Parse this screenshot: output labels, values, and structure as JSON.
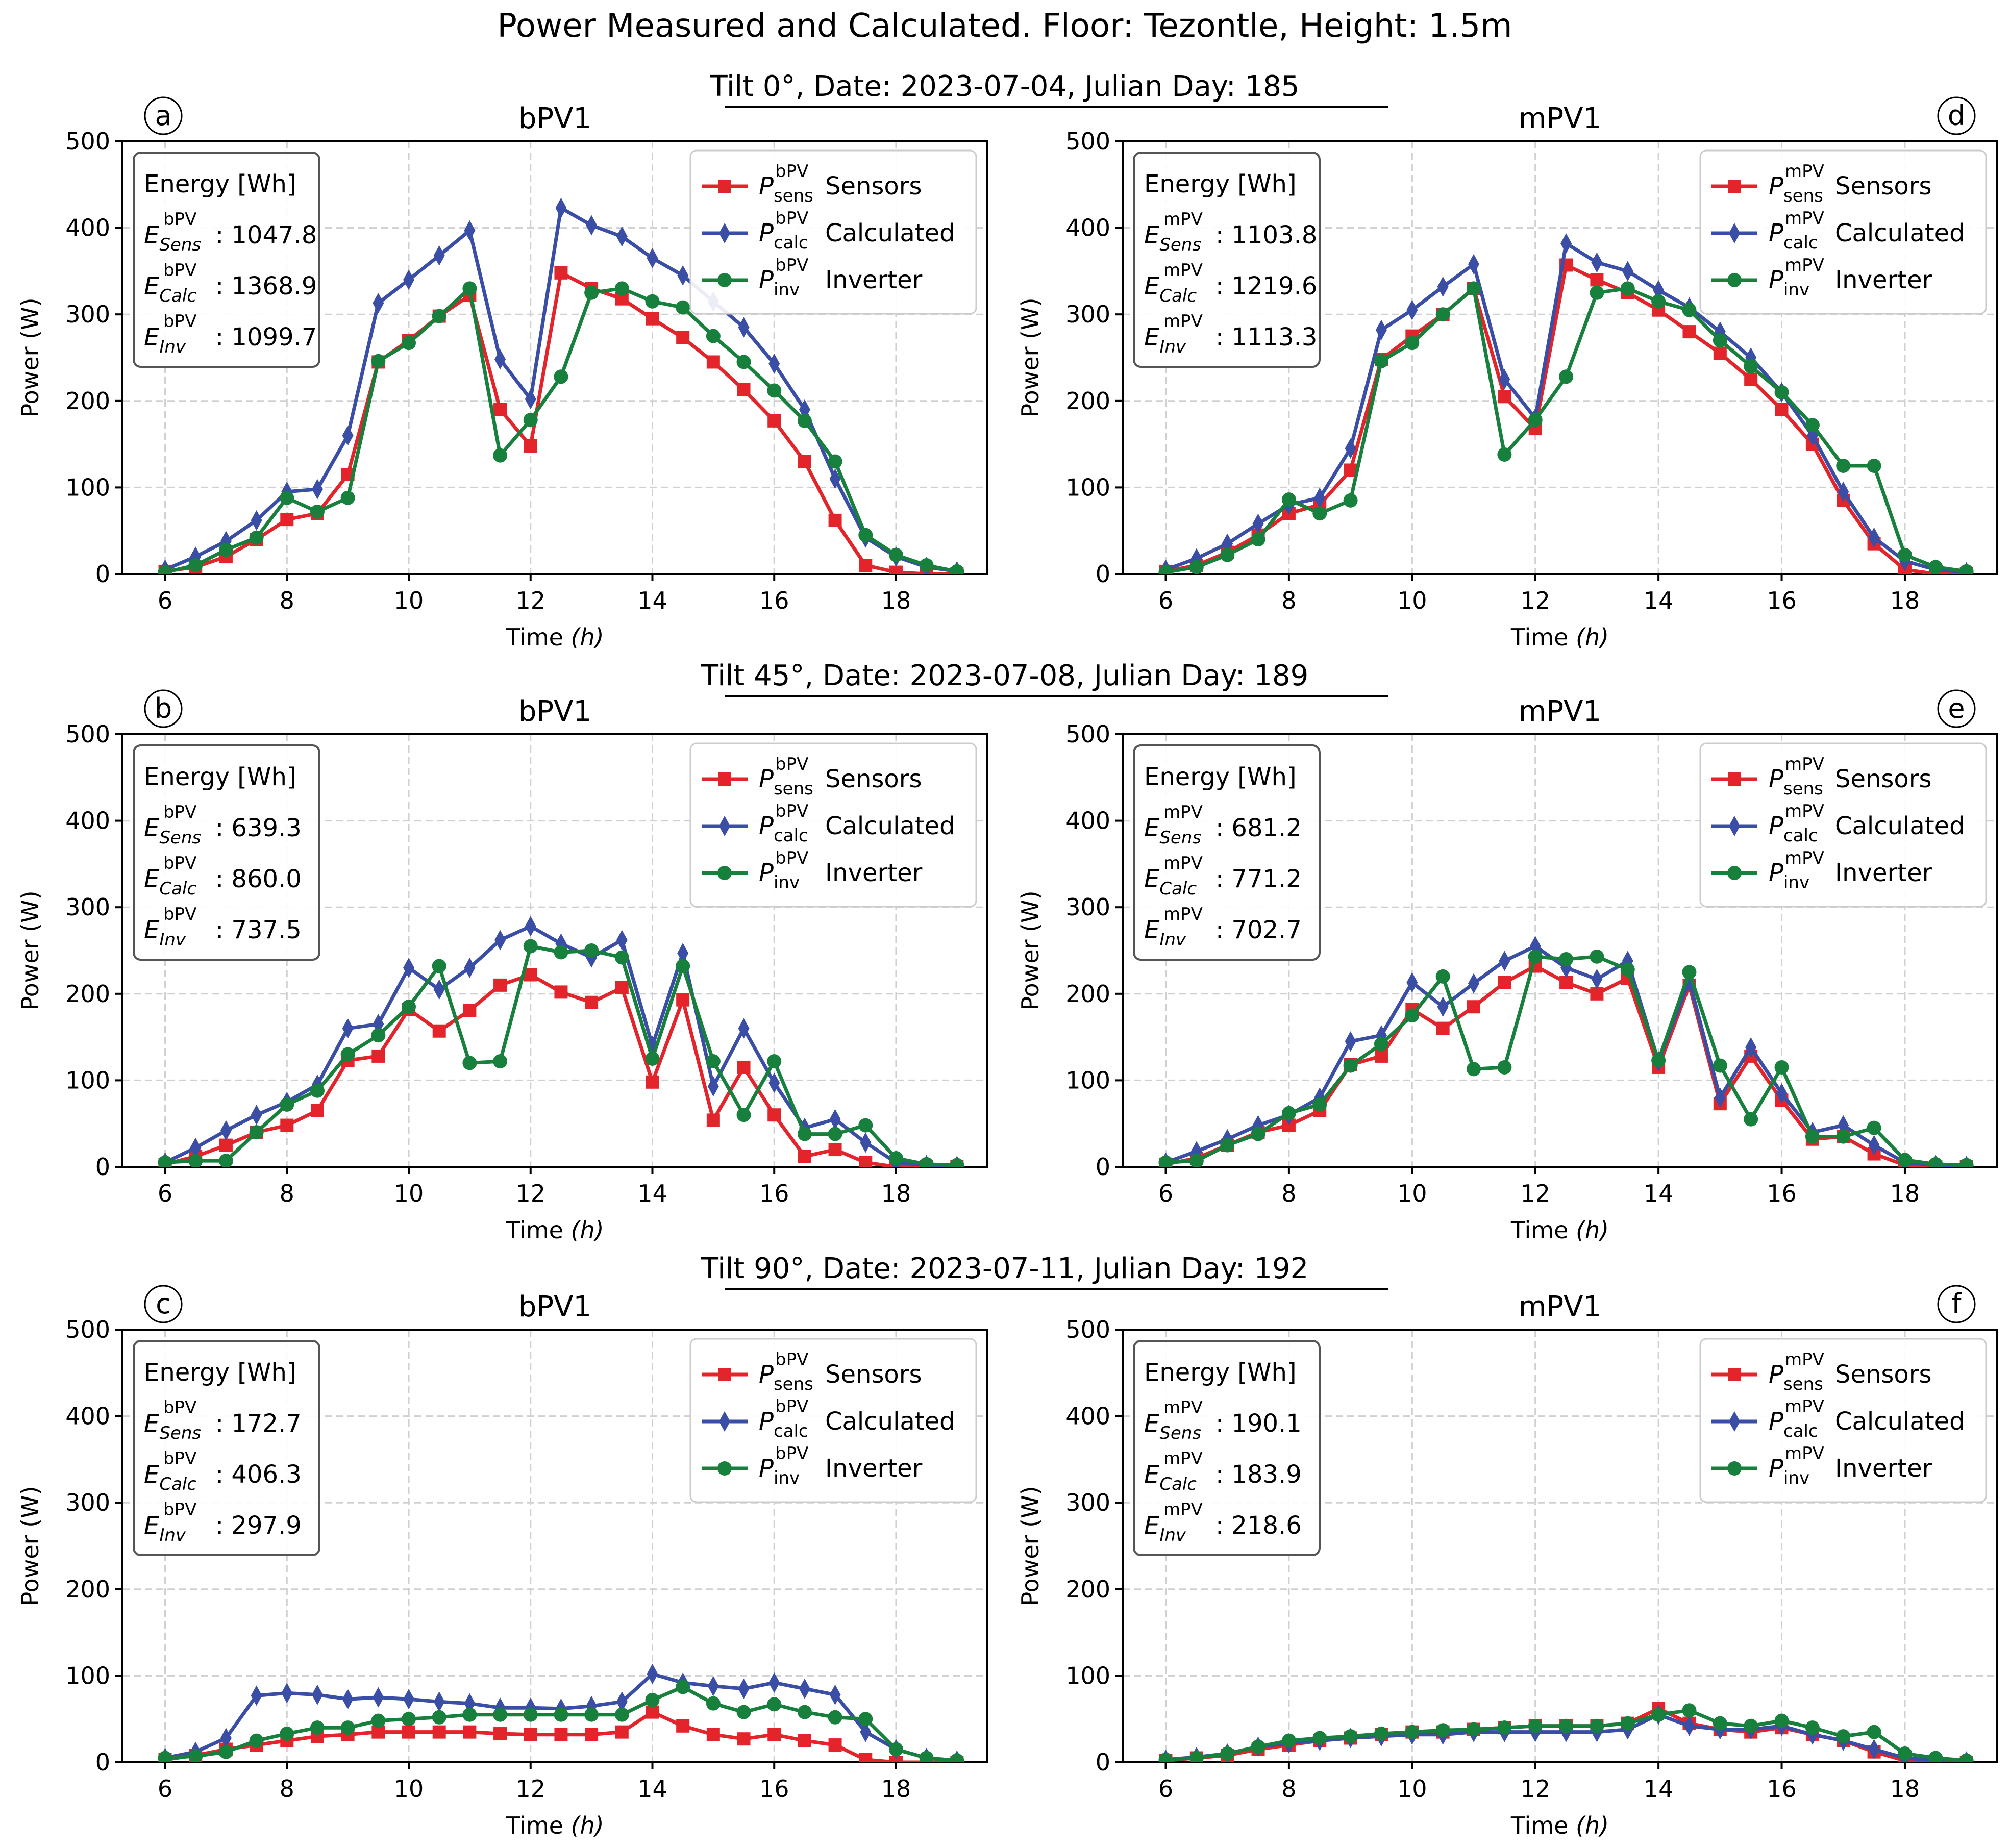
{
  "figure": {
    "title": "Power Measured and Calculated. Floor: Tezontle, Height: 1.5m",
    "rows": [
      "Tilt 0°, Date: 2023-07-04, Julian Day: 185",
      "Tilt 45°, Date: 2023-07-08, Julian Day: 189",
      "Tilt 90°, Date: 2023-07-11, Julian Day: 192"
    ],
    "colors": {
      "sensors": "#e3242b",
      "calculated": "#3a4ea6",
      "inverter": "#17803d"
    }
  },
  "chart_data": [
    {
      "type": "line",
      "panel": "a",
      "title": "bPV1",
      "pv": "bPV",
      "xlabel": "Time (h)",
      "ylabel": "Power (W)",
      "xlim": [
        5.3,
        19.5
      ],
      "ylim": [
        0,
        500
      ],
      "xticks": [
        6,
        8,
        10,
        12,
        14,
        16,
        18
      ],
      "yticks": [
        0,
        100,
        200,
        300,
        400,
        500
      ],
      "grid": true,
      "legend_position": "top-right",
      "x": [
        6,
        6.5,
        7,
        7.5,
        8,
        8.5,
        9,
        9.5,
        10,
        10.5,
        11,
        11.5,
        12,
        12.5,
        13,
        13.5,
        14,
        14.5,
        15,
        15.5,
        16,
        16.5,
        17,
        17.5,
        18,
        18.5,
        19
      ],
      "series": [
        {
          "key": "sensors",
          "name": "Sensors",
          "values": [
            3,
            8,
            20,
            40,
            63,
            70,
            115,
            245,
            270,
            298,
            322,
            190,
            148,
            348,
            330,
            318,
            295,
            273,
            245,
            213,
            177,
            130,
            62,
            10,
            2,
            0,
            0
          ]
        },
        {
          "key": "calculated",
          "name": "Calculated",
          "values": [
            5,
            20,
            38,
            62,
            95,
            98,
            160,
            313,
            340,
            368,
            397,
            248,
            202,
            423,
            403,
            390,
            365,
            345,
            315,
            285,
            243,
            190,
            110,
            42,
            20,
            8,
            3
          ]
        },
        {
          "key": "inverter",
          "name": "Inverter",
          "values": [
            2,
            10,
            28,
            42,
            88,
            72,
            88,
            246,
            267,
            298,
            330,
            137,
            178,
            228,
            325,
            330,
            315,
            308,
            275,
            245,
            212,
            177,
            130,
            45,
            22,
            10,
            3
          ]
        }
      ],
      "energy": {
        "heading": "Energy [Wh]",
        "sens": "1047.8",
        "calc": "1368.9",
        "inv": "1099.7"
      }
    },
    {
      "type": "line",
      "panel": "d",
      "title": "mPV1",
      "pv": "mPV",
      "xlabel": "Time (h)",
      "ylabel": "Power (W)",
      "xlim": [
        5.3,
        19.5
      ],
      "ylim": [
        0,
        500
      ],
      "xticks": [
        6,
        8,
        10,
        12,
        14,
        16,
        18
      ],
      "yticks": [
        0,
        100,
        200,
        300,
        400,
        500
      ],
      "grid": true,
      "legend_position": "top-right",
      "x": [
        6,
        6.5,
        7,
        7.5,
        8,
        8.5,
        9,
        9.5,
        10,
        10.5,
        11,
        11.5,
        12,
        12.5,
        13,
        13.5,
        14,
        14.5,
        15,
        15.5,
        16,
        16.5,
        17,
        17.5,
        18,
        18.5,
        19
      ],
      "series": [
        {
          "key": "sensors",
          "name": "Sensors",
          "values": [
            3,
            10,
            25,
            45,
            70,
            80,
            120,
            248,
            275,
            300,
            330,
            205,
            168,
            357,
            340,
            325,
            305,
            280,
            255,
            225,
            190,
            150,
            85,
            35,
            5,
            0,
            0
          ]
        },
        {
          "key": "calculated",
          "name": "Calculated",
          "values": [
            5,
            18,
            35,
            58,
            80,
            88,
            145,
            282,
            305,
            332,
            358,
            225,
            180,
            382,
            360,
            350,
            328,
            308,
            280,
            250,
            210,
            160,
            95,
            42,
            15,
            5,
            2
          ]
        },
        {
          "key": "inverter",
          "name": "Inverter",
          "values": [
            2,
            8,
            22,
            40,
            86,
            70,
            85,
            246,
            267,
            300,
            330,
            138,
            178,
            228,
            325,
            330,
            315,
            305,
            270,
            240,
            210,
            172,
            125,
            125,
            22,
            8,
            3
          ]
        }
      ],
      "energy": {
        "heading": "Energy [Wh]",
        "sens": "1103.8",
        "calc": "1219.6",
        "inv": "1113.3"
      }
    },
    {
      "type": "line",
      "panel": "b",
      "title": "bPV1",
      "pv": "bPV",
      "xlabel": "Time (h)",
      "ylabel": "Power (W)",
      "xlim": [
        5.3,
        19.5
      ],
      "ylim": [
        0,
        500
      ],
      "xticks": [
        6,
        8,
        10,
        12,
        14,
        16,
        18
      ],
      "yticks": [
        0,
        100,
        200,
        300,
        400,
        500
      ],
      "grid": true,
      "legend_position": "top-right",
      "x": [
        6,
        6.5,
        7,
        7.5,
        8,
        8.5,
        9,
        9.5,
        10,
        10.5,
        11,
        11.5,
        12,
        12.5,
        13,
        13.5,
        14,
        14.5,
        15,
        15.5,
        16,
        16.5,
        17,
        17.5,
        18,
        18.5,
        19
      ],
      "series": [
        {
          "key": "sensors",
          "name": "Sensors",
          "values": [
            3,
            12,
            25,
            40,
            48,
            65,
            123,
            128,
            182,
            157,
            181,
            210,
            222,
            202,
            190,
            207,
            98,
            193,
            54,
            115,
            60,
            12,
            20,
            5,
            0,
            0,
            0
          ]
        },
        {
          "key": "calculated",
          "name": "Calculated",
          "values": [
            5,
            22,
            42,
            60,
            75,
            95,
            160,
            165,
            230,
            205,
            230,
            262,
            278,
            258,
            242,
            262,
            140,
            247,
            93,
            160,
            97,
            45,
            55,
            28,
            5,
            2,
            1
          ]
        },
        {
          "key": "inverter",
          "name": "Inverter",
          "values": [
            5,
            7,
            7,
            40,
            72,
            88,
            130,
            152,
            185,
            232,
            120,
            122,
            255,
            248,
            250,
            242,
            125,
            232,
            122,
            60,
            122,
            38,
            38,
            48,
            10,
            3,
            2
          ]
        }
      ],
      "energy": {
        "heading": "Energy [Wh]",
        "sens": "639.3",
        "calc": "860.0",
        "inv": "737.5"
      }
    },
    {
      "type": "line",
      "panel": "e",
      "title": "mPV1",
      "pv": "mPV",
      "xlabel": "Time (h)",
      "ylabel": "Power (W)",
      "xlim": [
        5.3,
        19.5
      ],
      "ylim": [
        0,
        500
      ],
      "xticks": [
        6,
        8,
        10,
        12,
        14,
        16,
        18
      ],
      "yticks": [
        0,
        100,
        200,
        300,
        400,
        500
      ],
      "grid": true,
      "legend_position": "top-right",
      "x": [
        6,
        6.5,
        7,
        7.5,
        8,
        8.5,
        9,
        9.5,
        10,
        10.5,
        11,
        11.5,
        12,
        12.5,
        13,
        13.5,
        14,
        14.5,
        15,
        15.5,
        16,
        16.5,
        17,
        17.5,
        18,
        18.5,
        19
      ],
      "series": [
        {
          "key": "sensors",
          "name": "Sensors",
          "values": [
            3,
            10,
            25,
            40,
            48,
            65,
            118,
            128,
            182,
            160,
            185,
            213,
            232,
            213,
            200,
            218,
            115,
            210,
            73,
            128,
            77,
            32,
            35,
            15,
            2,
            0,
            0
          ]
        },
        {
          "key": "calculated",
          "name": "Calculated",
          "values": [
            5,
            18,
            32,
            48,
            60,
            80,
            145,
            152,
            213,
            185,
            212,
            238,
            255,
            230,
            217,
            238,
            122,
            215,
            80,
            138,
            85,
            40,
            48,
            25,
            5,
            2,
            1
          ]
        },
        {
          "key": "inverter",
          "name": "Inverter",
          "values": [
            5,
            7,
            25,
            38,
            62,
            72,
            117,
            142,
            175,
            220,
            113,
            115,
            243,
            240,
            243,
            228,
            123,
            225,
            117,
            55,
            115,
            35,
            35,
            45,
            8,
            3,
            2
          ]
        }
      ],
      "energy": {
        "heading": "Energy [Wh]",
        "sens": "681.2",
        "calc": "771.2",
        "inv": "702.7"
      }
    },
    {
      "type": "line",
      "panel": "c",
      "title": "bPV1",
      "pv": "bPV",
      "xlabel": "Time (h)",
      "ylabel": "Power (W)",
      "xlim": [
        5.3,
        19.5
      ],
      "ylim": [
        0,
        500
      ],
      "xticks": [
        6,
        8,
        10,
        12,
        14,
        16,
        18
      ],
      "yticks": [
        0,
        100,
        200,
        300,
        400,
        500
      ],
      "grid": true,
      "legend_position": "top-right",
      "x": [
        6,
        6.5,
        7,
        7.5,
        8,
        8.5,
        9,
        9.5,
        10,
        10.5,
        11,
        11.5,
        12,
        12.5,
        13,
        13.5,
        14,
        14.5,
        15,
        15.5,
        16,
        16.5,
        17,
        17.5,
        18,
        18.5,
        19
      ],
      "series": [
        {
          "key": "sensors",
          "name": "Sensors",
          "values": [
            3,
            8,
            15,
            20,
            25,
            30,
            32,
            35,
            35,
            35,
            35,
            33,
            32,
            32,
            32,
            35,
            58,
            42,
            32,
            27,
            32,
            25,
            20,
            3,
            0,
            0,
            0
          ]
        },
        {
          "key": "calculated",
          "name": "Calculated",
          "values": [
            5,
            12,
            28,
            77,
            80,
            78,
            73,
            75,
            73,
            70,
            68,
            63,
            63,
            62,
            65,
            70,
            102,
            92,
            88,
            85,
            92,
            85,
            78,
            35,
            15,
            5,
            2
          ]
        },
        {
          "key": "inverter",
          "name": "Inverter",
          "values": [
            5,
            7,
            12,
            25,
            33,
            40,
            40,
            48,
            50,
            52,
            55,
            55,
            55,
            55,
            55,
            55,
            72,
            87,
            68,
            58,
            67,
            58,
            52,
            50,
            15,
            5,
            2
          ]
        }
      ],
      "energy": {
        "heading": "Energy [Wh]",
        "sens": "172.7",
        "calc": "406.3",
        "inv": "297.9"
      }
    },
    {
      "type": "line",
      "panel": "f",
      "title": "mPV1",
      "pv": "mPV",
      "xlabel": "Time (h)",
      "ylabel": "Power (W)",
      "xlim": [
        5.3,
        19.5
      ],
      "ylim": [
        0,
        500
      ],
      "xticks": [
        6,
        8,
        10,
        12,
        14,
        16,
        18
      ],
      "yticks": [
        0,
        100,
        200,
        300,
        400,
        500
      ],
      "grid": true,
      "legend_position": "top-right",
      "x": [
        6,
        6.5,
        7,
        7.5,
        8,
        8.5,
        9,
        9.5,
        10,
        10.5,
        11,
        11.5,
        12,
        12.5,
        13,
        13.5,
        14,
        14.5,
        15,
        15.5,
        16,
        16.5,
        17,
        17.5,
        18,
        18.5,
        19
      ],
      "series": [
        {
          "key": "sensors",
          "name": "Sensors",
          "values": [
            2,
            5,
            8,
            15,
            20,
            25,
            28,
            32,
            35,
            35,
            38,
            40,
            42,
            42,
            42,
            45,
            62,
            45,
            38,
            35,
            40,
            32,
            25,
            12,
            2,
            0,
            0
          ]
        },
        {
          "key": "calculated",
          "name": "Calculated",
          "values": [
            3,
            6,
            10,
            18,
            22,
            25,
            28,
            30,
            32,
            32,
            35,
            35,
            35,
            35,
            35,
            38,
            55,
            42,
            38,
            38,
            42,
            32,
            25,
            15,
            5,
            2,
            1
          ]
        },
        {
          "key": "inverter",
          "name": "Inverter",
          "values": [
            3,
            5,
            10,
            18,
            25,
            28,
            30,
            33,
            35,
            37,
            38,
            40,
            42,
            42,
            42,
            45,
            55,
            60,
            45,
            42,
            48,
            40,
            30,
            35,
            10,
            5,
            2
          ]
        }
      ],
      "energy": {
        "heading": "Energy [Wh]",
        "sens": "190.1",
        "calc": "183.9",
        "inv": "218.6"
      }
    }
  ]
}
